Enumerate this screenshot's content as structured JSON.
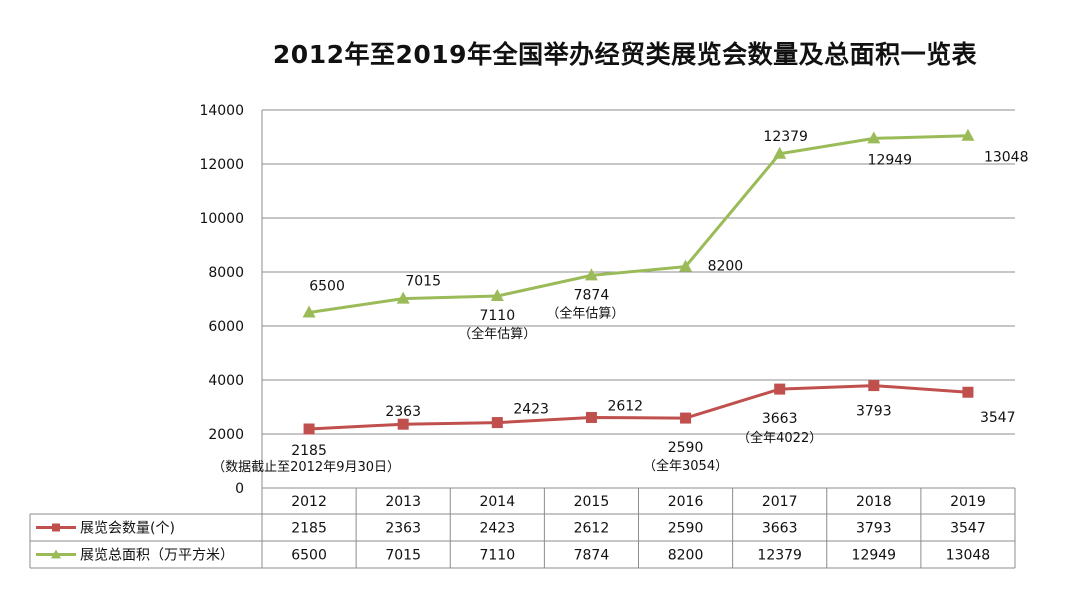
{
  "chart_data": {
    "type": "line",
    "title": "2012年至2019年全国举办经贸类展览会数量及总面积一览表",
    "categories": [
      "2012",
      "2013",
      "2014",
      "2015",
      "2016",
      "2017",
      "2018",
      "2019"
    ],
    "ylim": [
      0,
      14000
    ],
    "yticks": [
      0,
      2000,
      4000,
      6000,
      8000,
      10000,
      12000,
      14000
    ],
    "grid": true,
    "legend": "data-table-left",
    "series": [
      {
        "name": "展览会数量(个)",
        "color": "#c0504d",
        "marker": "square",
        "values": [
          2185,
          2363,
          2423,
          2612,
          2590,
          3663,
          3793,
          3547
        ],
        "labels": [
          "2185",
          "2363",
          "2423",
          "2612",
          "2590",
          "3663",
          "3793",
          "3547"
        ]
      },
      {
        "name": "展览总面积（万平方米）",
        "color": "#9bbb59",
        "marker": "triangle",
        "values": [
          6500,
          7015,
          7110,
          7874,
          8200,
          12379,
          12949,
          13048
        ],
        "labels": [
          "6500",
          "7015",
          "7110",
          "7874",
          "8200",
          "12379",
          "12949",
          "13048"
        ]
      }
    ],
    "annotations": [
      {
        "series": 0,
        "index": 0,
        "text": "（数据截止至2012年9月30日）"
      },
      {
        "series": 0,
        "index": 4,
        "text": "（全年3054）"
      },
      {
        "series": 0,
        "index": 5,
        "text": "（全年4022）"
      },
      {
        "series": 1,
        "index": 2,
        "text": "（全年估算）"
      },
      {
        "series": 1,
        "index": 3,
        "text": "（全年估算）"
      }
    ]
  }
}
